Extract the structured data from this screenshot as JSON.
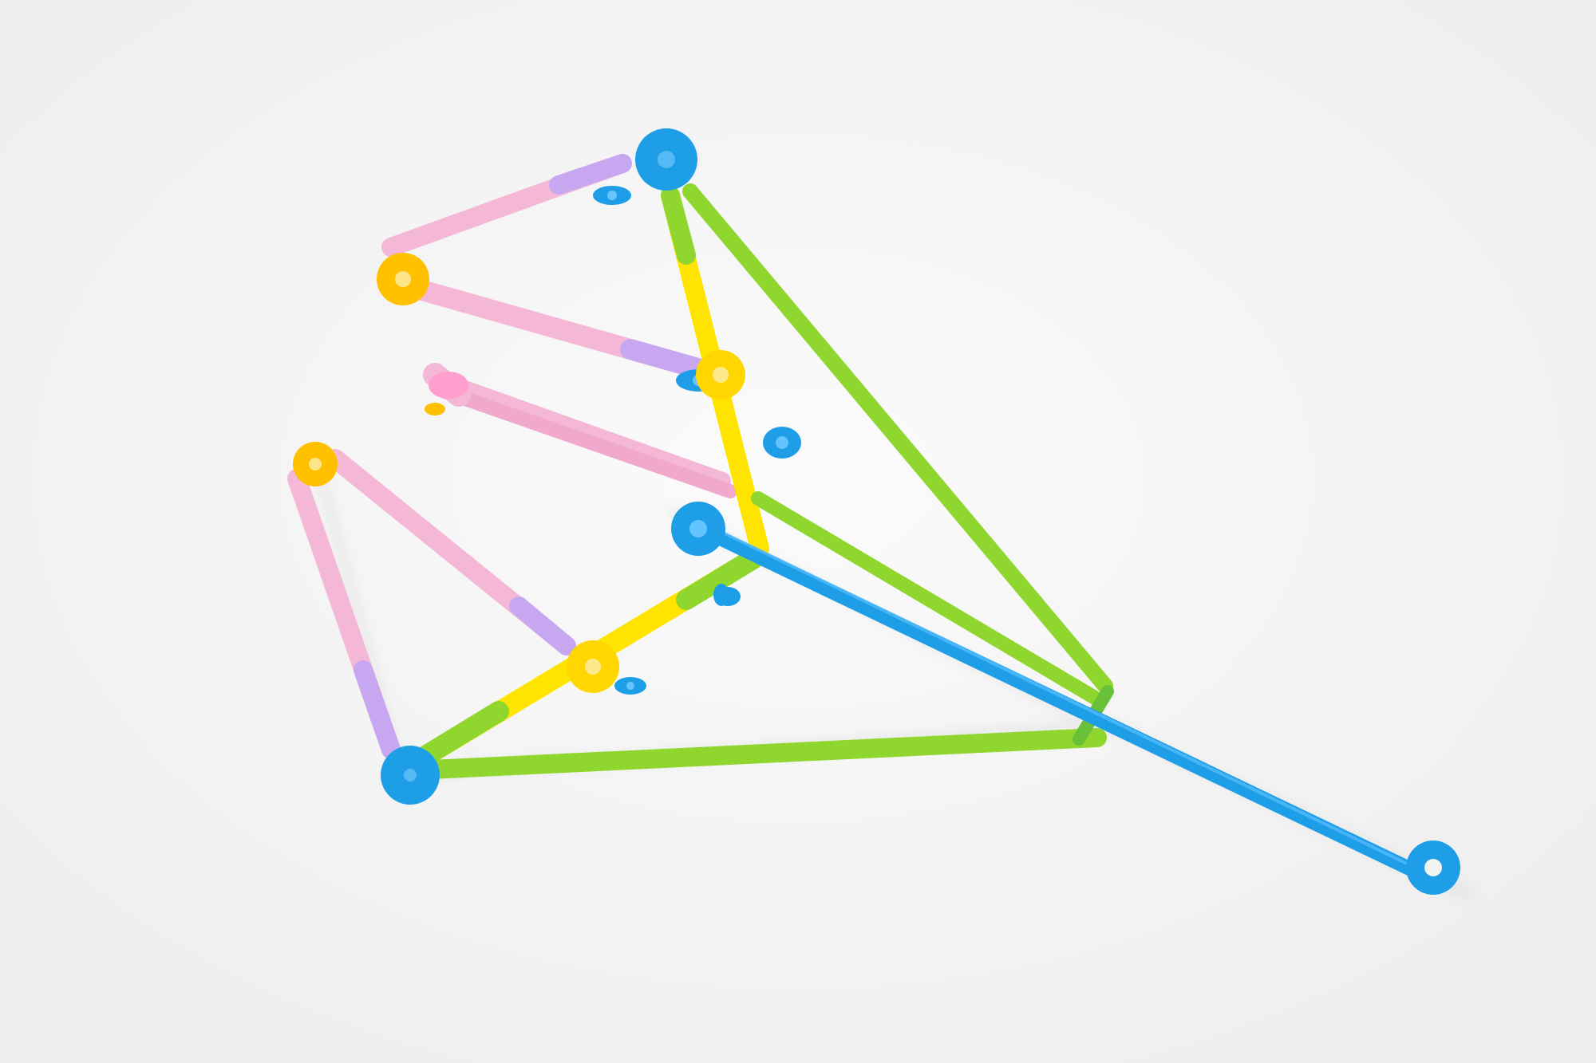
{
  "scene": {
    "subject": "straw-connector-structure",
    "background": "#f3f3f3",
    "colors": {
      "pink": "#f4b8d6",
      "pink_dark": "#e79cc4",
      "purple": "#c7a8f0",
      "yellow": "#ffe400",
      "yellow_dark": "#f2cf00",
      "green": "#8fd62f",
      "green_dark": "#69c13a",
      "blue": "#1f9ee8",
      "blue_dark": "#0d86d3",
      "orange_connector": "#ffc000",
      "shadow": "#d9d9d9"
    }
  }
}
